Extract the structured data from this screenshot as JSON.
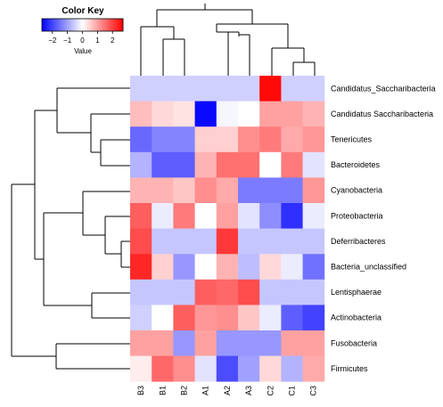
{
  "chart_data": {
    "type": "heatmap",
    "title": "",
    "columns": [
      "B3",
      "B1",
      "B2",
      "A1",
      "A2",
      "A3",
      "C2",
      "C1",
      "C3"
    ],
    "rows": [
      "Candidatus_Saccharibacteria",
      "Candidatus Saccharibacteria",
      "Tenericutes",
      "Bacteroidetes",
      "Cyanobacteria",
      "Proteobacteria",
      "Deferribacteres",
      "Bacteria_unclassified",
      "Lentisphaerae",
      "Actinobacteria",
      "Fusobacteria",
      "Firmicutes"
    ],
    "values": [
      [
        -0.5,
        -0.5,
        -0.5,
        -0.5,
        -0.5,
        -0.5,
        2.6,
        -0.5,
        -0.5
      ],
      [
        0.7,
        0.4,
        0.3,
        -2.6,
        -0.1,
        0.0,
        1.0,
        1.0,
        0.8
      ],
      [
        -1.6,
        -1.3,
        -1.3,
        0.5,
        0.5,
        1.2,
        1.4,
        0.9,
        1.1
      ],
      [
        -0.8,
        -1.7,
        -1.7,
        0.8,
        1.5,
        1.5,
        0.0,
        1.4,
        -0.3
      ],
      [
        0.8,
        0.8,
        0.6,
        1.2,
        0.9,
        -1.4,
        -1.4,
        -1.4,
        1.1
      ],
      [
        1.7,
        -0.2,
        1.4,
        0.0,
        1.0,
        -0.3,
        -1.2,
        -2.2,
        -0.2
      ],
      [
        1.9,
        -0.6,
        -0.6,
        -0.6,
        2.1,
        -0.6,
        -0.6,
        -0.6,
        -0.6
      ],
      [
        2.3,
        0.5,
        -1.1,
        0.0,
        0.8,
        -0.7,
        0.4,
        -0.2,
        -1.5
      ],
      [
        -0.6,
        -0.6,
        -0.6,
        1.7,
        1.6,
        1.9,
        -0.6,
        -0.6,
        -0.6
      ],
      [
        -0.5,
        0.0,
        1.7,
        1.1,
        1.2,
        0.6,
        -0.2,
        -1.7,
        -2.0
      ],
      [
        1.0,
        1.0,
        -1.1,
        1.0,
        -1.1,
        -1.1,
        -1.1,
        1.0,
        1.0
      ],
      [
        0.2,
        1.6,
        1.2,
        -0.3,
        -1.9,
        -1.0,
        0.4,
        -0.8,
        0.9
      ]
    ],
    "color_key": {
      "title": "Color Key",
      "label": "Value",
      "ticks": [
        "−2",
        "−1",
        "0",
        "1",
        "2"
      ],
      "tick_values": [
        -2,
        -1,
        0,
        1,
        2
      ],
      "range": [
        -2.7,
        2.7
      ],
      "colors": {
        "low": "#0000ff",
        "mid": "#ffffff",
        "high": "#ff0000"
      }
    },
    "legend_position": "top-left"
  }
}
